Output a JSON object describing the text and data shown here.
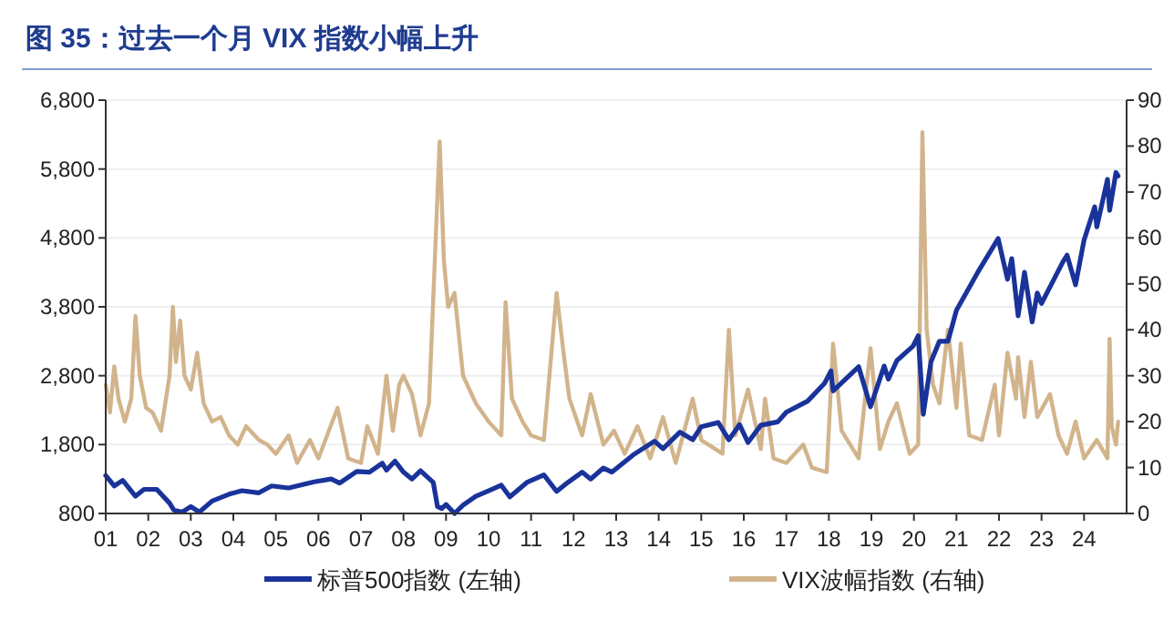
{
  "chart_data": {
    "type": "line",
    "title": "图 35：过去一个月 VIX 指数小幅上升",
    "xlim": [
      2001,
      2025
    ],
    "xticks": [
      {
        "value": 2001,
        "label": "01"
      },
      {
        "value": 2002,
        "label": "02"
      },
      {
        "value": 2003,
        "label": "03"
      },
      {
        "value": 2004,
        "label": "04"
      },
      {
        "value": 2005,
        "label": "05"
      },
      {
        "value": 2006,
        "label": "06"
      },
      {
        "value": 2007,
        "label": "07"
      },
      {
        "value": 2008,
        "label": "08"
      },
      {
        "value": 2009,
        "label": "09"
      },
      {
        "value": 2010,
        "label": "10"
      },
      {
        "value": 2011,
        "label": "11"
      },
      {
        "value": 2012,
        "label": "12"
      },
      {
        "value": 2013,
        "label": "13"
      },
      {
        "value": 2014,
        "label": "14"
      },
      {
        "value": 2015,
        "label": "15"
      },
      {
        "value": 2016,
        "label": "16"
      },
      {
        "value": 2017,
        "label": "17"
      },
      {
        "value": 2018,
        "label": "18"
      },
      {
        "value": 2019,
        "label": "19"
      },
      {
        "value": 2020,
        "label": "20"
      },
      {
        "value": 2021,
        "label": "21"
      },
      {
        "value": 2022,
        "label": "22"
      },
      {
        "value": 2023,
        "label": "23"
      },
      {
        "value": 2024,
        "label": "24"
      }
    ],
    "ylim": [
      800,
      6800
    ],
    "yticks": [
      {
        "value": 800,
        "label": "800"
      },
      {
        "value": 1800,
        "label": "1,800"
      },
      {
        "value": 2800,
        "label": "2,800"
      },
      {
        "value": 3800,
        "label": "3,800"
      },
      {
        "value": 4800,
        "label": "4,800"
      },
      {
        "value": 5800,
        "label": "5,800"
      },
      {
        "value": 6800,
        "label": "6,800"
      }
    ],
    "y2lim": [
      0,
      90
    ],
    "y2ticks": [
      0,
      10,
      20,
      30,
      40,
      50,
      60,
      70,
      80,
      90
    ],
    "grid": "y",
    "legend": "bottom",
    "series": [
      {
        "name": "VIX波幅指数 (右轴)",
        "color": "#d2b48c",
        "axis": "y2",
        "x": [
          2001.0,
          2001.1,
          2001.2,
          2001.3,
          2001.45,
          2001.6,
          2001.7,
          2001.8,
          2001.95,
          2002.1,
          2002.3,
          2002.5,
          2002.58,
          2002.65,
          2002.75,
          2002.85,
          2003.0,
          2003.15,
          2003.3,
          2003.5,
          2003.7,
          2003.9,
          2004.1,
          2004.3,
          2004.6,
          2004.8,
          2005.0,
          2005.3,
          2005.5,
          2005.8,
          2006.0,
          2006.45,
          2006.7,
          2007.0,
          2007.15,
          2007.4,
          2007.6,
          2007.75,
          2007.9,
          2008.0,
          2008.2,
          2008.4,
          2008.6,
          2008.85,
          2008.95,
          2009.05,
          2009.2,
          2009.4,
          2009.7,
          2010.0,
          2010.3,
          2010.4,
          2010.55,
          2010.8,
          2011.0,
          2011.3,
          2011.6,
          2011.75,
          2011.9,
          2012.2,
          2012.4,
          2012.7,
          2012.95,
          2013.2,
          2013.5,
          2013.8,
          2014.1,
          2014.4,
          2014.8,
          2015.0,
          2015.5,
          2015.65,
          2015.8,
          2016.1,
          2016.4,
          2016.5,
          2016.7,
          2017.0,
          2017.4,
          2017.6,
          2017.95,
          2018.1,
          2018.3,
          2018.7,
          2018.98,
          2019.2,
          2019.4,
          2019.6,
          2019.9,
          2020.1,
          2020.2,
          2020.3,
          2020.45,
          2020.6,
          2020.8,
          2021.0,
          2021.1,
          2021.3,
          2021.6,
          2021.9,
          2022.0,
          2022.2,
          2022.4,
          2022.45,
          2022.6,
          2022.75,
          2022.9,
          2023.2,
          2023.4,
          2023.6,
          2023.8,
          2024.0,
          2024.3,
          2024.55,
          2024.6,
          2024.65,
          2024.75,
          2024.8
        ],
        "values": [
          28,
          22,
          32,
          25,
          20,
          25,
          43,
          30,
          23,
          22,
          18,
          30,
          45,
          33,
          42,
          30,
          27,
          35,
          24,
          20,
          21,
          17,
          15,
          19,
          16,
          15,
          13,
          17,
          11,
          16,
          12,
          23,
          12,
          11,
          19,
          13,
          30,
          18,
          28,
          30,
          26,
          17,
          24,
          81,
          55,
          45,
          48,
          30,
          24,
          20,
          17,
          46,
          25,
          20,
          17,
          16,
          48,
          36,
          25,
          17,
          26,
          15,
          18,
          13,
          19,
          12,
          21,
          11,
          25,
          16,
          13,
          40,
          17,
          27,
          14,
          25,
          12,
          11,
          15,
          10,
          9,
          37,
          18,
          12,
          36,
          14,
          20,
          24,
          13,
          15,
          83,
          40,
          28,
          24,
          40,
          23,
          37,
          17,
          16,
          28,
          17,
          35,
          25,
          34,
          21,
          33,
          21,
          26,
          17,
          13,
          20,
          12,
          16,
          12,
          38,
          19,
          15,
          20
        ]
      },
      {
        "name": "标普500指数 (左轴)",
        "color": "#1a339a",
        "x": [
          2001.0,
          2001.2,
          2001.4,
          2001.7,
          2001.9,
          2002.2,
          2002.5,
          2002.6,
          2002.8,
          2003.0,
          2003.2,
          2003.5,
          2003.9,
          2004.2,
          2004.6,
          2004.9,
          2005.3,
          2005.9,
          2006.3,
          2006.5,
          2006.9,
          2007.2,
          2007.5,
          2007.6,
          2007.8,
          2008.0,
          2008.2,
          2008.4,
          2008.7,
          2008.8,
          2008.9,
          2009.0,
          2009.2,
          2009.4,
          2009.7,
          2010.0,
          2010.3,
          2010.5,
          2010.9,
          2011.3,
          2011.6,
          2011.8,
          2012.2,
          2012.4,
          2012.7,
          2012.9,
          2013.4,
          2013.9,
          2014.1,
          2014.5,
          2014.8,
          2015.0,
          2015.4,
          2015.65,
          2015.9,
          2016.1,
          2016.4,
          2016.8,
          2017.0,
          2017.5,
          2017.9,
          2018.05,
          2018.1,
          2018.7,
          2018.98,
          2019.3,
          2019.4,
          2019.6,
          2019.98,
          2020.1,
          2020.22,
          2020.4,
          2020.6,
          2020.8,
          2021.0,
          2021.5,
          2021.98,
          2022.2,
          2022.3,
          2022.45,
          2022.6,
          2022.78,
          2022.9,
          2023.0,
          2023.5,
          2023.6,
          2023.8,
          2024.0,
          2024.25,
          2024.3,
          2024.55,
          2024.6,
          2024.75,
          2024.8
        ],
        "values": [
          1350,
          1200,
          1280,
          1050,
          1150,
          1150,
          950,
          850,
          820,
          900,
          820,
          980,
          1080,
          1130,
          1100,
          1200,
          1170,
          1260,
          1300,
          1240,
          1410,
          1400,
          1530,
          1430,
          1560,
          1400,
          1300,
          1420,
          1250,
          900,
          870,
          930,
          800,
          920,
          1050,
          1130,
          1210,
          1040,
          1250,
          1360,
          1120,
          1220,
          1400,
          1300,
          1460,
          1400,
          1650,
          1850,
          1740,
          1980,
          1870,
          2060,
          2120,
          1870,
          2090,
          1830,
          2080,
          2130,
          2270,
          2430,
          2690,
          2870,
          2580,
          2930,
          2350,
          2940,
          2750,
          3020,
          3230,
          3380,
          2240,
          3000,
          3300,
          3300,
          3750,
          4300,
          4790,
          4200,
          4500,
          3670,
          4300,
          3580,
          4000,
          3850,
          4450,
          4550,
          4120,
          4770,
          5250,
          4960,
          5650,
          5200,
          5750,
          5700
        ]
      }
    ]
  }
}
